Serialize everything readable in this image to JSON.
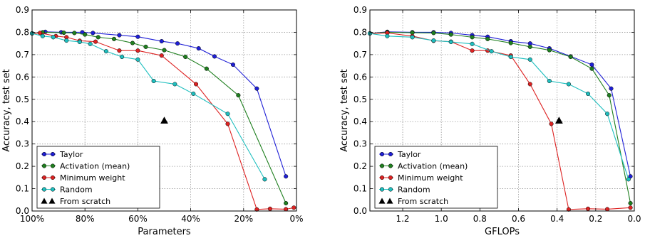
{
  "chart_data": [
    {
      "type": "line",
      "xlabel": "Parameters",
      "ylabel": "Accuracy, test set",
      "xlim": [
        1.0,
        0.0
      ],
      "ylim": [
        0.0,
        0.9
      ],
      "x_tick_values": [
        1.0,
        0.8,
        0.6,
        0.4,
        0.2,
        0.0
      ],
      "x_tick_labels": [
        "100%",
        "80%",
        "60%",
        "40%",
        "20%",
        "0%"
      ],
      "y_tick_values": [
        0.0,
        0.1,
        0.2,
        0.3,
        0.4,
        0.5,
        0.6,
        0.7,
        0.8,
        0.9
      ],
      "y_tick_labels": [
        "0.0",
        "0.1",
        "0.2",
        "0.3",
        "0.4",
        "0.5",
        "0.6",
        "0.7",
        "0.8",
        "0.9"
      ],
      "grid": true,
      "legend_position": "lower-left",
      "series": [
        {
          "name": "Taylor",
          "color": "#1f1fd6",
          "marker": "circle",
          "points": [
            [
              1.0,
              0.795
            ],
            [
              0.95,
              0.802
            ],
            [
              0.89,
              0.8
            ],
            [
              0.81,
              0.8
            ],
            [
              0.77,
              0.797
            ],
            [
              0.67,
              0.787
            ],
            [
              0.6,
              0.78
            ],
            [
              0.51,
              0.76
            ],
            [
              0.45,
              0.75
            ],
            [
              0.37,
              0.728
            ],
            [
              0.31,
              0.692
            ],
            [
              0.24,
              0.655
            ],
            [
              0.15,
              0.548
            ],
            [
              0.04,
              0.155
            ]
          ]
        },
        {
          "name": "Activation (mean)",
          "color": "#1f7f1f",
          "marker": "circle",
          "points": [
            [
              1.0,
              0.795
            ],
            [
              0.96,
              0.8
            ],
            [
              0.88,
              0.798
            ],
            [
              0.84,
              0.797
            ],
            [
              0.8,
              0.79
            ],
            [
              0.75,
              0.778
            ],
            [
              0.69,
              0.77
            ],
            [
              0.62,
              0.752
            ],
            [
              0.57,
              0.735
            ],
            [
              0.5,
              0.72
            ],
            [
              0.42,
              0.69
            ],
            [
              0.34,
              0.637
            ],
            [
              0.22,
              0.518
            ],
            [
              0.04,
              0.035
            ]
          ]
        },
        {
          "name": "Minimum weight",
          "color": "#dd2222",
          "marker": "circle",
          "points": [
            [
              1.0,
              0.795
            ],
            [
              0.97,
              0.797
            ],
            [
              0.91,
              0.783
            ],
            [
              0.87,
              0.778
            ],
            [
              0.82,
              0.762
            ],
            [
              0.76,
              0.758
            ],
            [
              0.67,
              0.718
            ],
            [
              0.6,
              0.718
            ],
            [
              0.51,
              0.696
            ],
            [
              0.38,
              0.568
            ],
            [
              0.26,
              0.39
            ],
            [
              0.15,
              0.007
            ],
            [
              0.1,
              0.01
            ],
            [
              0.04,
              0.008
            ],
            [
              0.01,
              0.015
            ]
          ]
        },
        {
          "name": "Random",
          "color": "#1fbfbf",
          "marker": "circle",
          "points": [
            [
              1.0,
              0.795
            ],
            [
              0.96,
              0.783
            ],
            [
              0.92,
              0.778
            ],
            [
              0.87,
              0.763
            ],
            [
              0.82,
              0.757
            ],
            [
              0.78,
              0.748
            ],
            [
              0.72,
              0.715
            ],
            [
              0.66,
              0.69
            ],
            [
              0.6,
              0.678
            ],
            [
              0.54,
              0.582
            ],
            [
              0.46,
              0.568
            ],
            [
              0.39,
              0.525
            ],
            [
              0.26,
              0.435
            ],
            [
              0.12,
              0.142
            ]
          ]
        },
        {
          "name": "From scratch",
          "color": "#000000",
          "marker": "triangle",
          "line": false,
          "points": [
            [
              0.5,
              0.405
            ]
          ]
        }
      ]
    },
    {
      "type": "line",
      "xlabel": "GFLOPs",
      "ylabel": "Accuracy, test set",
      "xlim": [
        1.37,
        0.0
      ],
      "ylim": [
        0.0,
        0.9
      ],
      "x_tick_values": [
        1.2,
        1.0,
        0.8,
        0.6,
        0.4,
        0.2,
        0.0
      ],
      "x_tick_labels": [
        "1.2",
        "1.0",
        "0.8",
        "0.6",
        "0.4",
        "0.2",
        "0.0"
      ],
      "y_tick_values": [
        0.0,
        0.1,
        0.2,
        0.3,
        0.4,
        0.5,
        0.6,
        0.7,
        0.8,
        0.9
      ],
      "y_tick_labels": [
        "0.0",
        "0.1",
        "0.2",
        "0.3",
        "0.4",
        "0.5",
        "0.6",
        "0.7",
        "0.8",
        "0.9"
      ],
      "grid": true,
      "legend_position": "lower-left",
      "series": [
        {
          "name": "Taylor",
          "color": "#1f1fd6",
          "marker": "circle",
          "points": [
            [
              1.37,
              0.795
            ],
            [
              1.28,
              0.802
            ],
            [
              1.15,
              0.8
            ],
            [
              1.04,
              0.8
            ],
            [
              0.95,
              0.797
            ],
            [
              0.84,
              0.787
            ],
            [
              0.76,
              0.78
            ],
            [
              0.64,
              0.76
            ],
            [
              0.54,
              0.75
            ],
            [
              0.44,
              0.728
            ],
            [
              0.33,
              0.692
            ],
            [
              0.22,
              0.655
            ],
            [
              0.12,
              0.548
            ],
            [
              0.02,
              0.155
            ]
          ]
        },
        {
          "name": "Activation (mean)",
          "color": "#1f7f1f",
          "marker": "circle",
          "points": [
            [
              1.37,
              0.795
            ],
            [
              1.28,
              0.8
            ],
            [
              1.15,
              0.798
            ],
            [
              1.04,
              0.797
            ],
            [
              0.95,
              0.79
            ],
            [
              0.84,
              0.778
            ],
            [
              0.76,
              0.77
            ],
            [
              0.64,
              0.752
            ],
            [
              0.54,
              0.735
            ],
            [
              0.44,
              0.72
            ],
            [
              0.33,
              0.69
            ],
            [
              0.22,
              0.637
            ],
            [
              0.13,
              0.518
            ],
            [
              0.02,
              0.035
            ]
          ]
        },
        {
          "name": "Minimum weight",
          "color": "#dd2222",
          "marker": "circle",
          "points": [
            [
              1.37,
              0.795
            ],
            [
              1.28,
              0.797
            ],
            [
              1.15,
              0.783
            ],
            [
              1.04,
              0.762
            ],
            [
              0.95,
              0.758
            ],
            [
              0.84,
              0.718
            ],
            [
              0.76,
              0.718
            ],
            [
              0.64,
              0.696
            ],
            [
              0.54,
              0.568
            ],
            [
              0.43,
              0.39
            ],
            [
              0.34,
              0.007
            ],
            [
              0.24,
              0.01
            ],
            [
              0.14,
              0.008
            ],
            [
              0.02,
              0.015
            ]
          ]
        },
        {
          "name": "Random",
          "color": "#1fbfbf",
          "marker": "circle",
          "points": [
            [
              1.37,
              0.795
            ],
            [
              1.28,
              0.783
            ],
            [
              1.15,
              0.778
            ],
            [
              1.04,
              0.763
            ],
            [
              0.95,
              0.757
            ],
            [
              0.84,
              0.748
            ],
            [
              0.74,
              0.715
            ],
            [
              0.64,
              0.69
            ],
            [
              0.54,
              0.678
            ],
            [
              0.44,
              0.582
            ],
            [
              0.34,
              0.568
            ],
            [
              0.24,
              0.525
            ],
            [
              0.14,
              0.435
            ],
            [
              0.03,
              0.142
            ]
          ]
        },
        {
          "name": "From scratch",
          "color": "#000000",
          "marker": "triangle",
          "line": false,
          "points": [
            [
              0.39,
              0.405
            ]
          ]
        }
      ]
    }
  ]
}
